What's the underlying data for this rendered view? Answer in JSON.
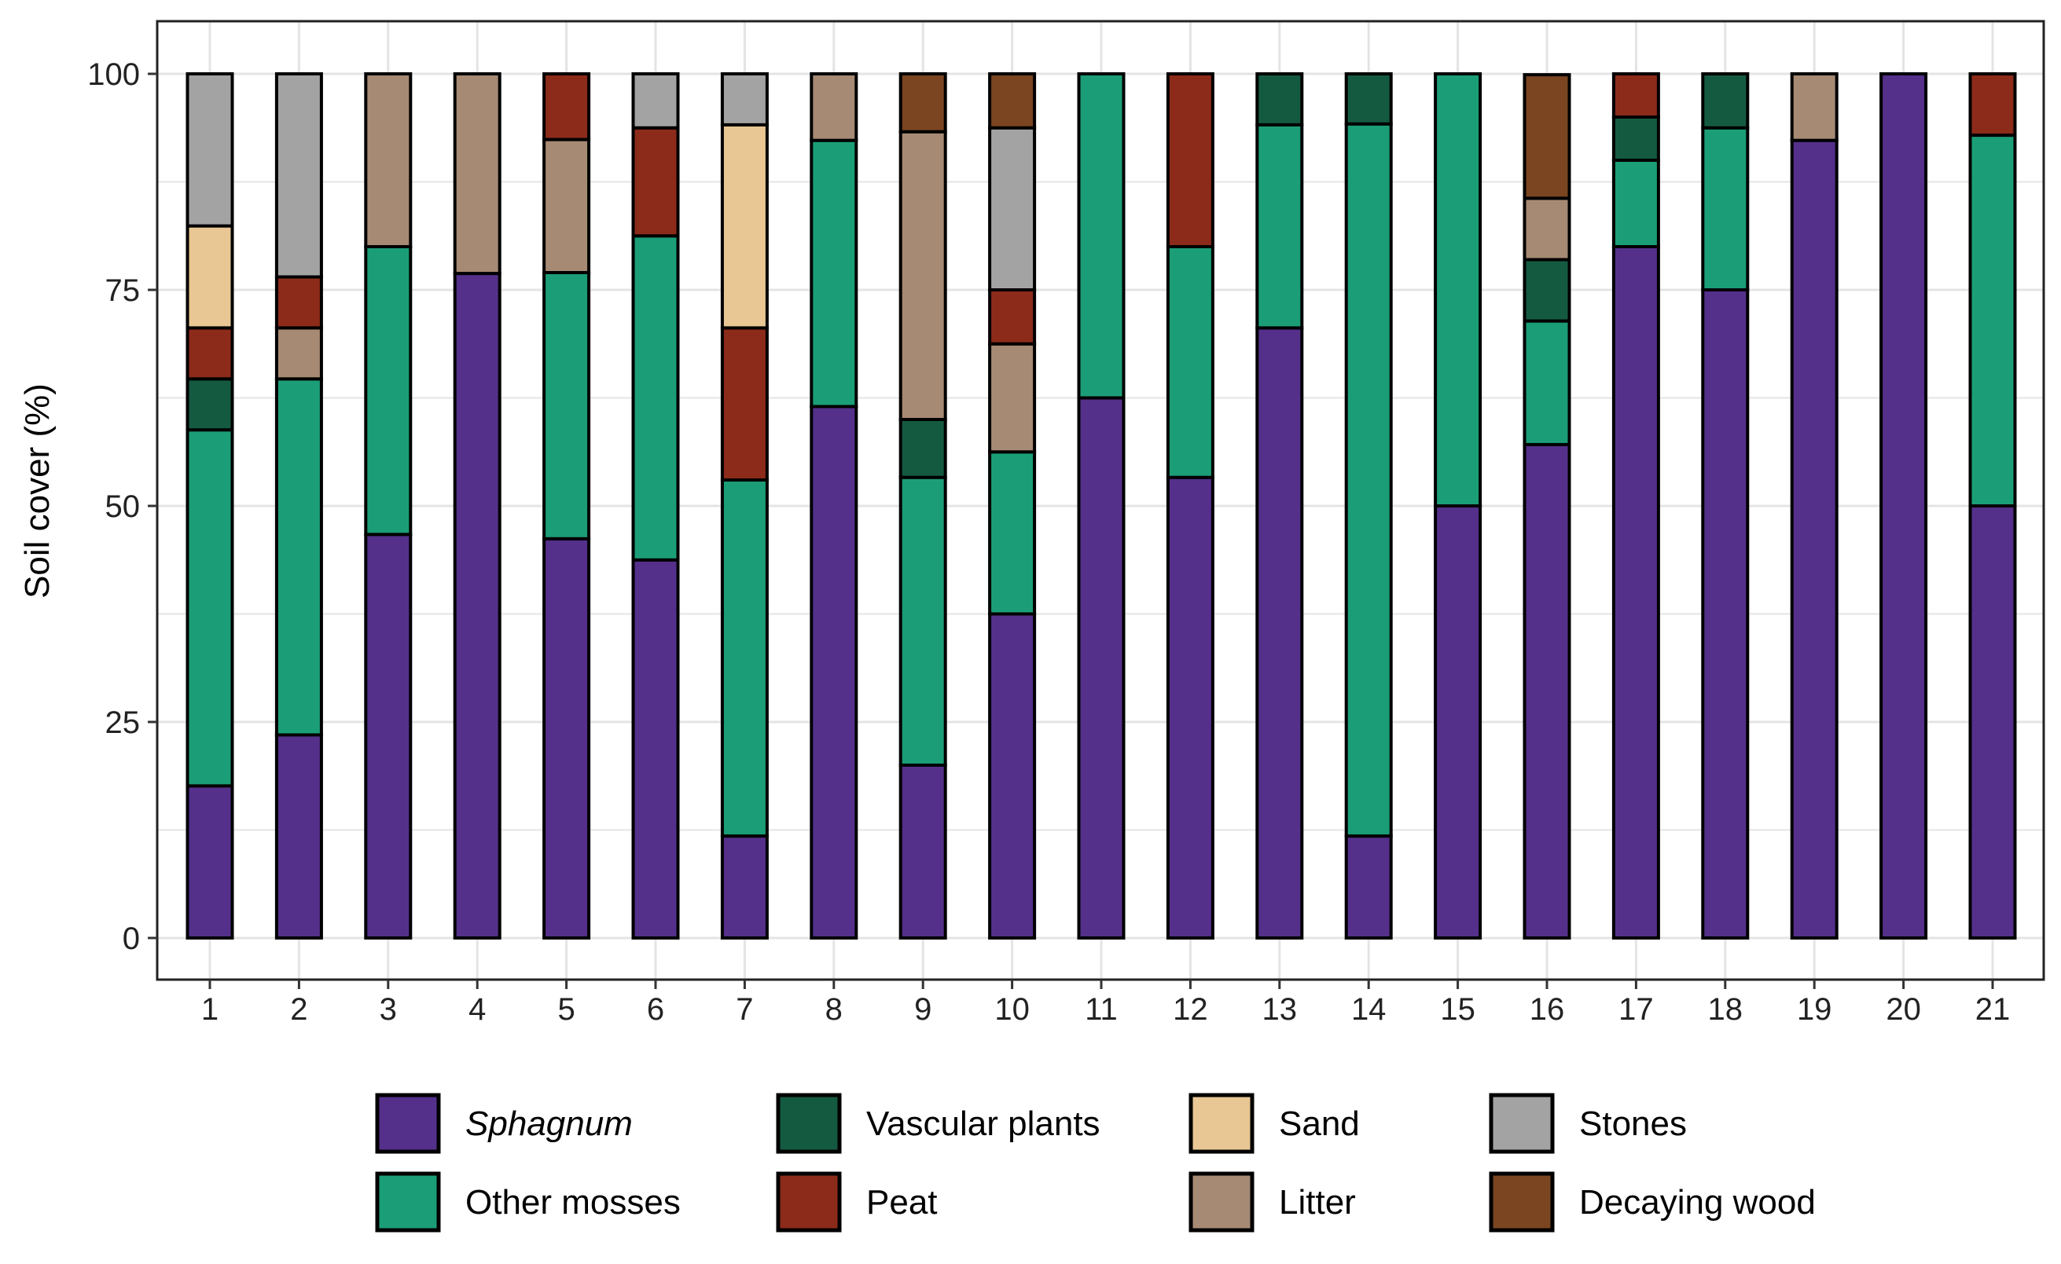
{
  "chart_data": {
    "type": "bar",
    "stacked": true,
    "title": "",
    "xlabel": "",
    "ylabel": "Soil cover (%)",
    "ylim": [
      0,
      100
    ],
    "yticks": [
      0,
      25,
      50,
      75,
      100
    ],
    "grid": true,
    "legend_position": "bottom",
    "categories": [
      "1",
      "2",
      "3",
      "4",
      "5",
      "6",
      "7",
      "8",
      "9",
      "10",
      "11",
      "12",
      "13",
      "14",
      "15",
      "16",
      "17",
      "18",
      "19",
      "20",
      "21"
    ],
    "series": [
      {
        "name": "Sphagnum",
        "italic": true,
        "color": "#54308a",
        "values": [
          17.6,
          23.5,
          46.7,
          76.9,
          46.2,
          43.75,
          11.8,
          61.5,
          20,
          37.5,
          62.5,
          53.3,
          70.6,
          11.8,
          50,
          57.1,
          80,
          75,
          92.3,
          100,
          50
        ]
      },
      {
        "name": "Other mosses",
        "color": "#1b9e77",
        "values": [
          41.2,
          41.2,
          33.3,
          0,
          30.8,
          37.5,
          41.2,
          30.8,
          33.3,
          18.75,
          37.5,
          26.7,
          23.5,
          82.4,
          50,
          14.3,
          10,
          18.75,
          0,
          0,
          42.9
        ]
      },
      {
        "name": "Vascular plants",
        "color": "#145a41",
        "values": [
          5.9,
          0,
          0,
          0,
          0,
          0,
          0,
          0,
          6.7,
          0,
          0,
          0,
          5.9,
          5.9,
          0,
          7.1,
          5,
          6.25,
          0,
          0,
          0
        ]
      },
      {
        "name": "Litter",
        "color": "#a68a74",
        "values": [
          0,
          5.9,
          20,
          23.1,
          15.4,
          0,
          0,
          7.7,
          33.3,
          12.5,
          0,
          0,
          0,
          0,
          0,
          7.1,
          0,
          0,
          7.7,
          0,
          0
        ]
      },
      {
        "name": "Peat",
        "color": "#8c2b1a",
        "values": [
          5.9,
          5.9,
          0,
          0,
          7.7,
          12.5,
          17.6,
          0,
          0,
          6.25,
          0,
          20,
          0,
          0,
          0,
          0,
          5,
          0,
          0,
          0,
          7.1
        ]
      },
      {
        "name": "Sand",
        "color": "#e8c794",
        "values": [
          11.8,
          0,
          0,
          0,
          0,
          0,
          23.5,
          0,
          0,
          0,
          0,
          0,
          0,
          0,
          0,
          0,
          0,
          0,
          0,
          0,
          0
        ]
      },
      {
        "name": "Stones",
        "color": "#a3a3a3",
        "values": [
          17.6,
          23.5,
          0,
          0,
          0,
          6.25,
          5.9,
          0,
          0,
          18.75,
          0,
          0,
          0,
          0,
          0,
          0,
          0,
          0,
          0,
          0,
          0
        ]
      },
      {
        "name": "Decaying wood",
        "color": "#7a4520",
        "values": [
          0,
          0,
          0,
          0,
          0,
          0,
          0,
          0,
          6.7,
          6.25,
          0,
          0,
          0,
          0,
          0,
          14.3,
          0,
          0,
          0,
          0,
          0
        ]
      }
    ],
    "legend_order": [
      "Sphagnum",
      "Vascular plants",
      "Sand",
      "Stones",
      "Other mosses",
      "Peat",
      "Litter",
      "Decaying wood"
    ]
  }
}
